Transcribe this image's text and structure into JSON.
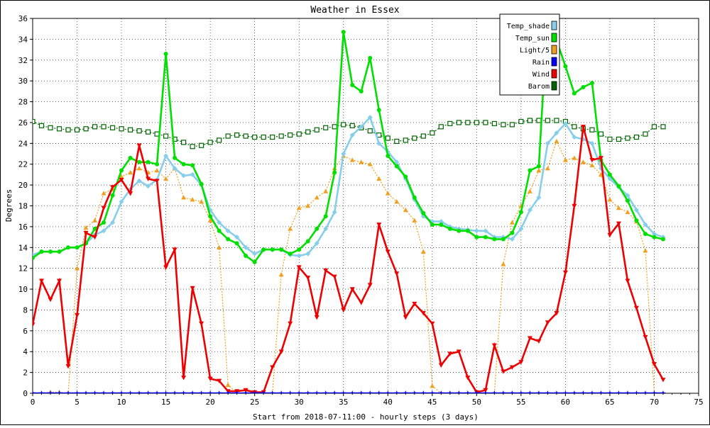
{
  "chart_data": {
    "type": "line",
    "title": "Weather in Essex",
    "xlabel": "Start from 2018-07-11:00 - hourly steps (3 days)",
    "ylabel": "Degrees",
    "xlim": [
      0,
      75
    ],
    "ylim": [
      0,
      36
    ],
    "xticks": [
      0,
      5,
      10,
      15,
      20,
      25,
      30,
      35,
      40,
      45,
      50,
      55,
      60,
      65,
      70,
      75
    ],
    "yticks": [
      0,
      2,
      4,
      6,
      8,
      10,
      12,
      14,
      16,
      18,
      20,
      22,
      24,
      26,
      28,
      30,
      32,
      34,
      36
    ],
    "grid": true,
    "legend_position": "top-right",
    "series": [
      {
        "name": "Temp_shade",
        "color": "#87ceeb",
        "marker": "diamond",
        "line": "solid",
        "values": [
          13.3,
          13.6,
          13.6,
          13.6,
          14.0,
          14.0,
          14.4,
          15.2,
          15.6,
          16.4,
          18.4,
          19.6,
          20.4,
          19.9,
          20.5,
          22.8,
          21.6,
          20.9,
          21.0,
          20.0,
          17.6,
          16.4,
          15.6,
          15.0,
          14.0,
          13.4,
          13.8,
          13.8,
          13.8,
          13.3,
          13.2,
          13.4,
          14.4,
          15.8,
          17.4,
          23.0,
          24.8,
          25.6,
          26.5,
          24.0,
          23.2,
          22.2,
          20.6,
          18.6,
          17.0,
          16.5,
          16.5,
          16.0,
          15.8,
          15.7,
          15.6,
          15.6,
          15.0,
          15.0,
          14.8,
          15.8,
          17.6,
          18.8,
          24.0,
          25.0,
          25.9,
          24.6,
          24.4,
          24.0,
          21.6,
          20.6,
          19.8,
          19.0,
          17.6,
          16.2,
          15.3,
          15.0
        ]
      },
      {
        "name": "Temp_sun",
        "color": "#00e000",
        "marker": "circle",
        "line": "solid",
        "values": [
          13.0,
          13.6,
          13.6,
          13.6,
          14.0,
          14.0,
          14.4,
          15.8,
          16.4,
          19.0,
          21.4,
          22.6,
          22.2,
          22.2,
          22.0,
          32.6,
          22.6,
          22.0,
          21.9,
          20.1,
          17.0,
          15.6,
          14.8,
          14.4,
          13.2,
          12.6,
          13.8,
          13.8,
          13.8,
          13.4,
          13.8,
          14.6,
          15.8,
          17.0,
          21.2,
          34.7,
          29.6,
          29.0,
          32.2,
          27.2,
          22.8,
          21.8,
          20.8,
          18.8,
          17.3,
          16.2,
          16.2,
          15.8,
          15.6,
          15.6,
          15.0,
          15.0,
          14.8,
          14.8,
          15.4,
          17.4,
          21.4,
          21.8,
          36.5,
          33.9,
          31.4,
          28.8,
          29.4,
          29.8,
          22.4,
          21.0,
          19.9,
          18.5,
          16.6,
          15.3,
          15.0,
          14.8
        ]
      },
      {
        "name": "Light/5",
        "color": "#f0a020",
        "marker": "triangle-up",
        "line": "dotted",
        "values": [
          0,
          0,
          0.1,
          0.1,
          0,
          12.0,
          15.9,
          16.6,
          19.2,
          19.6,
          20.8,
          21.2,
          21.6,
          21.2,
          21.4,
          20.6,
          21.6,
          18.8,
          18.6,
          18.4,
          16.6,
          14.0,
          0.8,
          0,
          0,
          0,
          0,
          0,
          11.4,
          15.8,
          17.8,
          18.0,
          18.8,
          19.4,
          21.6,
          22.8,
          22.4,
          22.2,
          22.0,
          20.6,
          19.2,
          18.4,
          17.6,
          16.6,
          13.6,
          0.7,
          0,
          0,
          0,
          0,
          0,
          0,
          0,
          12.4,
          16.4,
          18.0,
          19.4,
          21.4,
          21.6,
          24.2,
          22.4,
          22.6,
          22.2,
          21.9,
          21.0,
          18.6,
          17.8,
          17.4,
          16.5,
          13.7,
          0,
          0
        ]
      },
      {
        "name": "Rain",
        "color": "#0000ff",
        "marker": "star",
        "line": "solid",
        "values": [
          0,
          0,
          0,
          0,
          0,
          0,
          0,
          0,
          0,
          0,
          0,
          0,
          0,
          0,
          0,
          0,
          0,
          0,
          0,
          0,
          0,
          0,
          0,
          0,
          0,
          0,
          0,
          0,
          0,
          0,
          0,
          0,
          0,
          0,
          0,
          0,
          0,
          0,
          0,
          0,
          0,
          0,
          0,
          0,
          0,
          0,
          0,
          0,
          0,
          0,
          0,
          0,
          0,
          0,
          0,
          0,
          0,
          0,
          0,
          0,
          0,
          0,
          0,
          0,
          0,
          0,
          0,
          0,
          0,
          0,
          0,
          0
        ]
      },
      {
        "name": "Wind",
        "color": "#ee0000",
        "marker": "triangle-down",
        "line": "solid",
        "values": [
          6.6,
          10.8,
          9.0,
          10.8,
          2.6,
          7.5,
          15.4,
          15.0,
          17.8,
          19.8,
          20.5,
          19.2,
          23.8,
          20.6,
          20.4,
          12.1,
          13.8,
          1.5,
          10.1,
          6.7,
          1.4,
          1.2,
          0.2,
          0.2,
          0.3,
          0.1,
          0.1,
          2.5,
          4.0,
          6.7,
          12.1,
          11.1,
          7.3,
          11.8,
          11.2,
          8.0,
          10.0,
          8.7,
          10.4,
          16.2,
          13.6,
          11.5,
          7.3,
          8.6,
          7.7,
          6.7,
          2.7,
          3.8,
          4.0,
          1.5,
          0.1,
          0.3,
          4.6,
          2.1,
          2.5,
          3.0,
          5.3,
          5.0,
          6.8,
          7.7,
          11.6,
          18.0,
          25.6,
          22.4,
          22.6,
          15.2,
          16.3,
          10.8,
          8.2,
          5.4,
          2.8,
          1.3
        ]
      },
      {
        "name": "Barom",
        "color": "#006400",
        "marker": "open-square",
        "line": "dotted",
        "values": [
          26.1,
          25.7,
          25.5,
          25.4,
          25.3,
          25.3,
          25.4,
          25.6,
          25.6,
          25.5,
          25.4,
          25.3,
          25.2,
          25.1,
          24.9,
          24.7,
          24.4,
          24.1,
          23.7,
          23.8,
          24.1,
          24.3,
          24.7,
          24.8,
          24.7,
          24.6,
          24.6,
          24.6,
          24.7,
          24.8,
          24.9,
          25.1,
          25.3,
          25.5,
          25.6,
          25.8,
          25.7,
          25.5,
          25.2,
          24.8,
          24.5,
          24.2,
          24.3,
          24.5,
          24.7,
          25.0,
          25.6,
          25.9,
          26.0,
          26.0,
          26.0,
          26.0,
          25.9,
          25.8,
          25.8,
          26.1,
          26.2,
          26.2,
          26.2,
          26.2,
          26.1,
          25.6,
          25.4,
          25.3,
          24.9,
          24.4,
          24.4,
          24.5,
          24.6,
          24.9,
          25.6,
          25.6
        ]
      }
    ]
  }
}
